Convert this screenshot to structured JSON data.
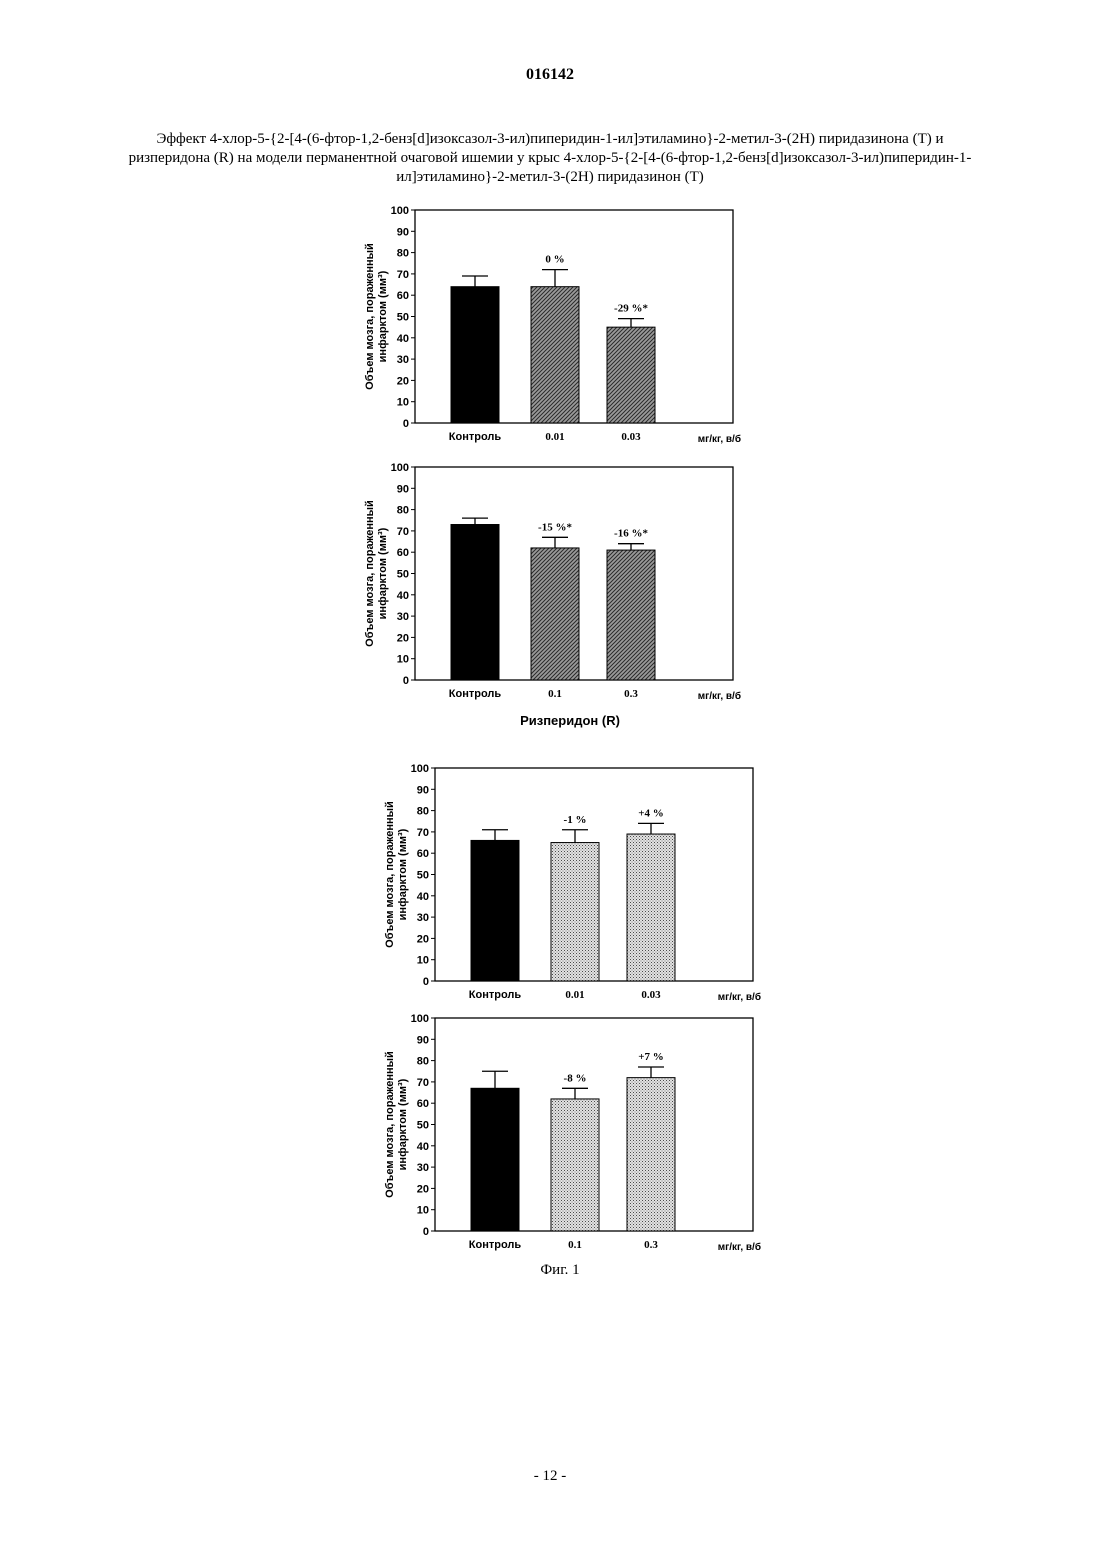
{
  "document": {
    "number": "016142",
    "caption": "Эффект 4-хлор-5-{2-[4-(6-фтор-1,2-бенз[d]изоксазол-3-ил)пиперидин-1-ил]этиламино}-2-метил-3-(2H) пиридазинона (Т) и ризперидона (R) на модели перманентной очаговой ишемии у крыс 4-хлор-5-{2-[4-(6-фтор-1,2-бенз[d]изоксазол-3-ил)пиперидин-1-ил]этиламино}-2-метил-3-(2H) пиридазинон (Т)",
    "risperidone_label": "Ризперидон (R)",
    "figure_label": "Фиг. 1",
    "page_number": "- 12 -"
  },
  "chart_data": [
    {
      "type": "bar",
      "ylabel_line1": "Объем мозга, пораженный",
      "ylabel_line2": "инфарктом (мм³)",
      "xunit": "мг/кг, в/б",
      "ylim": [
        0,
        100
      ],
      "yticks": [
        0,
        10,
        20,
        30,
        40,
        50,
        60,
        70,
        80,
        90,
        100
      ],
      "categories": [
        "Контроль",
        "0.01",
        "0.03"
      ],
      "values": [
        64,
        64,
        45
      ],
      "errors": [
        5,
        8,
        4
      ],
      "labels": [
        "",
        "0 %",
        "-29 %*"
      ],
      "fills": [
        "solid",
        "hatch",
        "hatch"
      ]
    },
    {
      "type": "bar",
      "ylabel_line1": "Объем мозга, пораженный",
      "ylabel_line2": "инфарктом (мм³)",
      "xunit": "мг/кг, в/б",
      "ylim": [
        0,
        100
      ],
      "yticks": [
        0,
        10,
        20,
        30,
        40,
        50,
        60,
        70,
        80,
        90,
        100
      ],
      "categories": [
        "Контроль",
        "0.1",
        "0.3"
      ],
      "values": [
        73,
        62,
        61
      ],
      "errors": [
        3,
        5,
        3
      ],
      "labels": [
        "",
        "-15 %*",
        "-16 %*"
      ],
      "fills": [
        "solid",
        "hatch",
        "hatch"
      ]
    },
    {
      "type": "bar",
      "ylabel_line1": "Объем мозга, пораженный",
      "ylabel_line2": "инфарктом (мм³)",
      "xunit": "мг/кг, в/б",
      "ylim": [
        0,
        100
      ],
      "yticks": [
        0,
        10,
        20,
        30,
        40,
        50,
        60,
        70,
        80,
        90,
        100
      ],
      "categories": [
        "Контроль",
        "0.01",
        "0.03"
      ],
      "values": [
        66,
        65,
        69
      ],
      "errors": [
        5,
        6,
        5
      ],
      "labels": [
        "",
        "-1 %",
        "+4 %"
      ],
      "fills": [
        "solid",
        "dots",
        "dots"
      ]
    },
    {
      "type": "bar",
      "ylabel_line1": "Объем мозга, пораженный",
      "ylabel_line2": "инфарктом (мм³)",
      "xunit": "мг/кг, в/б",
      "ylim": [
        0,
        100
      ],
      "yticks": [
        0,
        10,
        20,
        30,
        40,
        50,
        60,
        70,
        80,
        90,
        100
      ],
      "categories": [
        "Контроль",
        "0.1",
        "0.3"
      ],
      "values": [
        67,
        62,
        72
      ],
      "errors": [
        8,
        5,
        5
      ],
      "labels": [
        "",
        "-8 %",
        "+7 %"
      ],
      "fills": [
        "solid",
        "dots",
        "dots"
      ]
    }
  ]
}
